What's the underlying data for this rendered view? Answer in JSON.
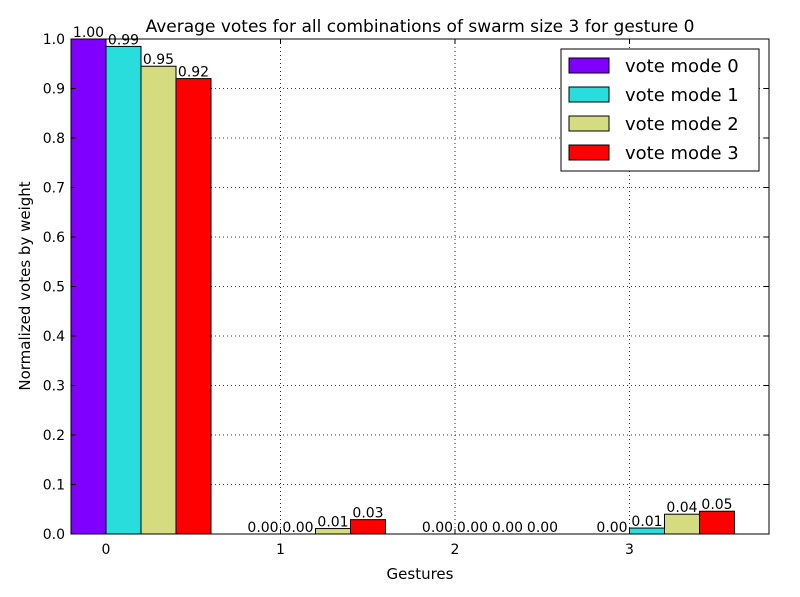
{
  "chart_data": {
    "type": "bar",
    "title": "Average votes for all combinations of swarm size 3 for gesture 0",
    "xlabel": "Gestures",
    "ylabel": "Normalized votes by weight",
    "categories": [
      "0",
      "1",
      "2",
      "3"
    ],
    "ylim": [
      0,
      1.0
    ],
    "yticks": [
      "0.0",
      "0.1",
      "0.2",
      "0.3",
      "0.4",
      "0.5",
      "0.6",
      "0.7",
      "0.8",
      "0.9",
      "1.0"
    ],
    "grid": true,
    "legend_position": "top-right",
    "series": [
      {
        "name": "vote mode 0",
        "color": "#8000ff",
        "values": [
          1.0,
          0.0,
          0.0,
          0.0
        ],
        "labels": [
          "1.00",
          "0.00",
          "0.00",
          "0.00"
        ]
      },
      {
        "name": "vote mode 1",
        "color": "#2adddd",
        "values": [
          0.985,
          0.0,
          0.0,
          0.012
        ],
        "labels": [
          "0.99",
          "0.00",
          "0.00",
          "0.01"
        ]
      },
      {
        "name": "vote mode 2",
        "color": "#d4dc7f",
        "values": [
          0.945,
          0.011,
          0.0,
          0.04
        ],
        "labels": [
          "0.95",
          "0.01",
          "0.00",
          "0.04"
        ]
      },
      {
        "name": "vote mode 3",
        "color": "#ff0000",
        "values": [
          0.92,
          0.029,
          0.0,
          0.046
        ],
        "labels": [
          "0.92",
          "0.03",
          "0.00",
          "0.05"
        ]
      }
    ]
  }
}
